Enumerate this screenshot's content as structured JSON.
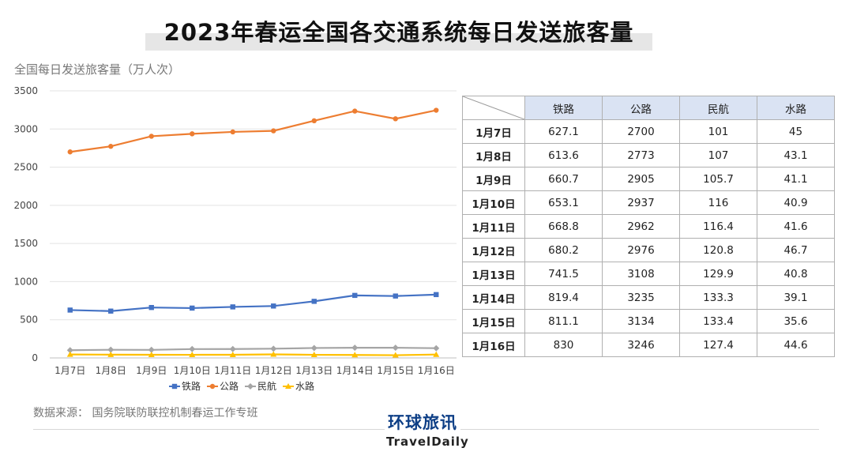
{
  "page": {
    "title": "2023年春运全国各交通系统每日发送旅客量",
    "subtitle": "全国每日发送旅客量（万人次）",
    "source": "数据来源：  国务院联防联控机制春运工作专班",
    "logo_cn": "环球旅讯",
    "logo_en": "TravelDaily"
  },
  "chart_data": {
    "type": "line",
    "categories": [
      "1月7日",
      "1月8日",
      "1月9日",
      "1月10日",
      "1月11日",
      "1月12日",
      "1月13日",
      "1月14日",
      "1月15日",
      "1月16日"
    ],
    "ylim": [
      0,
      3500
    ],
    "yticks": [
      0,
      500,
      1000,
      1500,
      2000,
      2500,
      3000,
      3500
    ],
    "grid": true,
    "legend_position": "bottom",
    "series": [
      {
        "name": "铁路",
        "color": "#4472c4",
        "marker": "square",
        "values": [
          627.1,
          613.6,
          660.7,
          653.1,
          668.8,
          680.2,
          741.5,
          819.4,
          811.1,
          830
        ]
      },
      {
        "name": "公路",
        "color": "#ed7d31",
        "marker": "circle",
        "values": [
          2700,
          2773,
          2905,
          2937,
          2962,
          2976,
          3108,
          3235,
          3134,
          3246
        ]
      },
      {
        "name": "民航",
        "color": "#a5a5a5",
        "marker": "diamond",
        "values": [
          101,
          107,
          105.7,
          116,
          116.4,
          120.8,
          129.9,
          133.3,
          133.4,
          127.4
        ]
      },
      {
        "name": "水路",
        "color": "#ffc000",
        "marker": "triangle",
        "values": [
          45,
          43.1,
          41.1,
          40.9,
          41.6,
          46.7,
          40.8,
          39.1,
          35.6,
          44.6
        ]
      }
    ]
  },
  "table": {
    "headers": [
      "铁路",
      "公路",
      "民航",
      "水路"
    ],
    "rows": [
      {
        "date": "1月7日",
        "values": [
          "627.1",
          "2700",
          "101",
          "45"
        ]
      },
      {
        "date": "1月8日",
        "values": [
          "613.6",
          "2773",
          "107",
          "43.1"
        ]
      },
      {
        "date": "1月9日",
        "values": [
          "660.7",
          "2905",
          "105.7",
          "41.1"
        ]
      },
      {
        "date": "1月10日",
        "values": [
          "653.1",
          "2937",
          "116",
          "40.9"
        ]
      },
      {
        "date": "1月11日",
        "values": [
          "668.8",
          "2962",
          "116.4",
          "41.6"
        ]
      },
      {
        "date": "1月12日",
        "values": [
          "680.2",
          "2976",
          "120.8",
          "46.7"
        ]
      },
      {
        "date": "1月13日",
        "values": [
          "741.5",
          "3108",
          "129.9",
          "40.8"
        ]
      },
      {
        "date": "1月14日",
        "values": [
          "819.4",
          "3235",
          "133.3",
          "39.1"
        ]
      },
      {
        "date": "1月15日",
        "values": [
          "811.1",
          "3134",
          "133.4",
          "35.6"
        ]
      },
      {
        "date": "1月16日",
        "values": [
          "830",
          "3246",
          "127.4",
          "44.6"
        ]
      }
    ]
  }
}
